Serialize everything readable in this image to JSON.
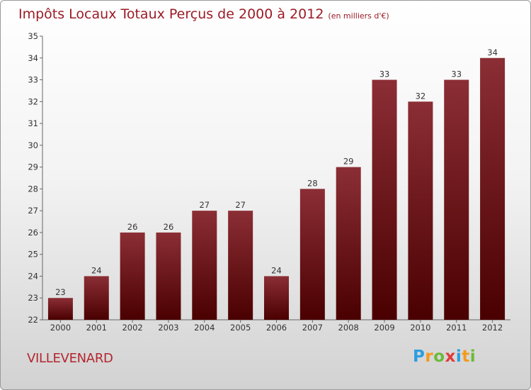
{
  "header": {
    "title": "Impôts Locaux Totaux Perçus de 2000 à 2012",
    "subtitle": "(en milliers d'€)"
  },
  "footer": {
    "commune": "VILLEVENARD",
    "logo": "Proxiti"
  },
  "colors": {
    "bar_top": "#8b2e35",
    "bar_bottom": "#4a0000",
    "title": "#9b1c26"
  },
  "chart_data": {
    "type": "bar",
    "title": "Impôts Locaux Totaux Perçus de 2000 à 2012",
    "subtitle": "(en milliers d'€)",
    "xlabel": "",
    "ylabel": "",
    "categories": [
      "2000",
      "2001",
      "2002",
      "2003",
      "2004",
      "2005",
      "2006",
      "2007",
      "2008",
      "2009",
      "2010",
      "2011",
      "2012"
    ],
    "values": [
      23,
      24,
      26,
      26,
      27,
      27,
      24,
      28,
      29,
      33,
      32,
      33,
      34
    ],
    "ylim": [
      22,
      35
    ],
    "yticks": [
      22,
      23,
      24,
      25,
      26,
      27,
      28,
      29,
      30,
      31,
      32,
      33,
      34,
      35
    ],
    "grid": false,
    "legend": "none"
  }
}
